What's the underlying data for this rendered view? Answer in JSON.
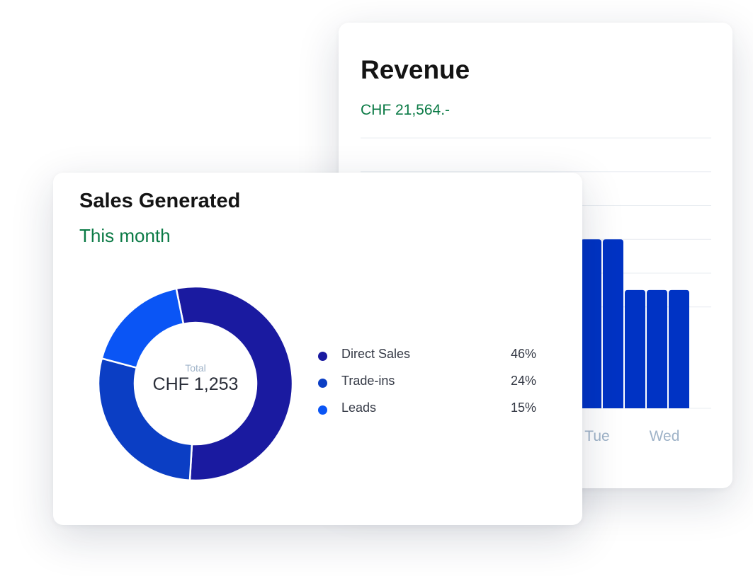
{
  "revenue_card": {
    "title": "Revenue",
    "amount": "CHF 21,564.-"
  },
  "sales_card": {
    "title": "Sales Generated",
    "subtitle": "This month",
    "total_label": "Total",
    "total_value": "CHF 1,253",
    "legend": [
      {
        "label": "Direct Sales",
        "percent": "46%",
        "color": "#1a1aa0"
      },
      {
        "label": "Trade-ins",
        "percent": "24%",
        "color": "#0b3ec4"
      },
      {
        "label": "Leads",
        "percent": "15%",
        "color": "#0a55f5"
      }
    ]
  },
  "chart_data": [
    {
      "type": "bar",
      "title": "Revenue",
      "categories": [
        "Tue",
        "Wed"
      ],
      "series_color": "#0033c4",
      "bars_per_category": [
        {
          "category": "Tue",
          "values": [
            5,
            5
          ]
        },
        {
          "category": "Wed",
          "values": [
            3.5,
            3.5,
            3.5
          ]
        }
      ],
      "ylim": [
        0,
        8
      ],
      "grid": true
    },
    {
      "type": "pie",
      "title": "Sales Generated",
      "labels": [
        "Direct Sales",
        "Trade-ins",
        "Leads"
      ],
      "values": [
        46,
        24,
        15
      ],
      "unit": "%",
      "colors": [
        "#1a1aa0",
        "#0b3ec4",
        "#0a55f5"
      ]
    }
  ]
}
